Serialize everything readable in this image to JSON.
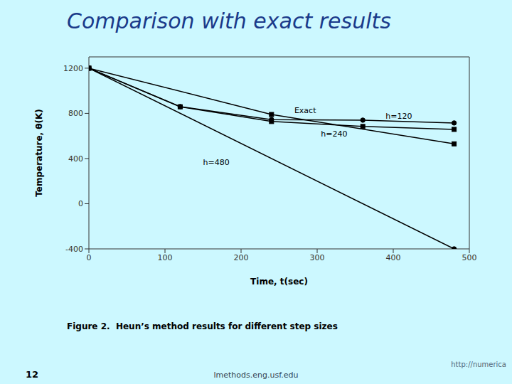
{
  "chart_data": {
    "type": "line",
    "title": "Comparison with exact results",
    "title_color": "#1a3a8a",
    "xlabel": "Time, t(sec)",
    "ylabel": "Temperature, θ(K)",
    "xlim": [
      0,
      500
    ],
    "ylim": [
      -400,
      1300
    ],
    "xticks": [
      0,
      100,
      200,
      300,
      400,
      500
    ],
    "yticks": [
      -400,
      0,
      400,
      800,
      1200
    ],
    "grid": false,
    "series": [
      {
        "x": [
          0,
          120,
          240,
          360,
          480
        ],
        "values": [
          1200,
          858,
          728,
          684,
          658
        ],
        "color": "#000000",
        "marker": "square",
        "line_style": "solid"
      },
      {
        "x": [
          0,
          120,
          240,
          360,
          480
        ],
        "values": [
          1200,
          860,
          745,
          740,
          715
        ],
        "color": "#000000",
        "marker": "circle",
        "line_style": "solid"
      },
      {
        "x": [
          0,
          240,
          480
        ],
        "values": [
          1200,
          790,
          530
        ],
        "color": "#000000",
        "marker": "square",
        "line_style": "solid"
      },
      {
        "x": [
          0,
          480
        ],
        "values": [
          1200,
          -400
        ],
        "color": "#000000",
        "marker": "circle",
        "line_style": "solid"
      }
    ],
    "annotations": [
      {
        "text": "Exact",
        "x": 270,
        "y": 830
      },
      {
        "text": "h=120",
        "x": 390,
        "y": 775
      },
      {
        "text": "h=240",
        "x": 305,
        "y": 618
      },
      {
        "text": "h=480",
        "x": 150,
        "y": 370
      }
    ],
    "caption": "Figure 2.  Heun’s method results for different step sizes",
    "page_number": "12",
    "footer_center": "lmethods.eng.usf.edu",
    "footer_right": "http://numerica"
  }
}
